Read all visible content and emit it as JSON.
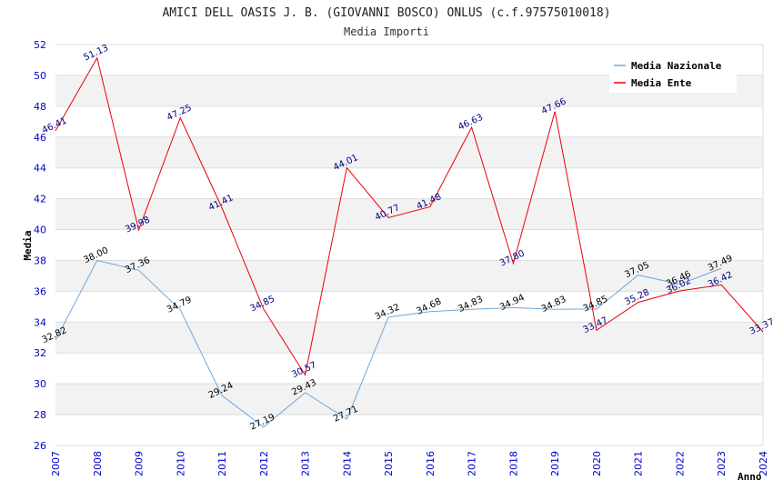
{
  "chart_data": {
    "type": "line",
    "title": "AMICI DELL OASIS J. B. (GIOVANNI BOSCO) ONLUS (c.f.97575010018)",
    "subtitle": "Media Importi",
    "xlabel": "Anno",
    "ylabel": "Media",
    "ylim": [
      26,
      52
    ],
    "yticks": [
      26,
      28,
      30,
      32,
      34,
      36,
      38,
      40,
      42,
      44,
      46,
      48,
      50,
      52
    ],
    "x": [
      "2007",
      "2008",
      "2009",
      "2010",
      "2011",
      "2012",
      "2013",
      "2014",
      "2015",
      "2016",
      "2017",
      "2018",
      "2019",
      "2020",
      "2021",
      "2022",
      "2023",
      "2024"
    ],
    "grid": true,
    "legend_position": "top-right",
    "series": [
      {
        "name": "Media Nazionale",
        "color": "#6fa8dc",
        "label_color": "#000000",
        "values": [
          32.82,
          38.0,
          37.36,
          34.79,
          29.24,
          27.19,
          29.43,
          27.71,
          34.32,
          34.68,
          34.83,
          34.94,
          34.83,
          34.85,
          37.05,
          36.46,
          37.49,
          null
        ],
        "labels": [
          "32.82",
          "38.00",
          "37.36",
          "34.79",
          "29.24",
          "27.19",
          "29.43",
          "27.71",
          "34.32",
          "34.68",
          "34.83",
          "34.94",
          "34.83",
          "34.85",
          "37.05",
          "36.46",
          "37.49",
          null
        ]
      },
      {
        "name": "Media Ente",
        "color": "#e8000b",
        "label_color": "#000080",
        "values": [
          46.41,
          51.13,
          39.98,
          47.25,
          41.41,
          34.85,
          30.57,
          44.01,
          40.77,
          41.48,
          46.63,
          37.8,
          47.66,
          33.47,
          35.28,
          36.02,
          36.42,
          33.37
        ],
        "labels": [
          "46.41",
          "51.13",
          "39.98",
          "47.25",
          "41.41",
          "34.85",
          "30.57",
          "44.01",
          "40.77",
          "41.48",
          "46.63",
          "37.80",
          "47.66",
          "33.47",
          "35.28",
          "36.02",
          "36.42",
          "33.37"
        ]
      }
    ]
  }
}
